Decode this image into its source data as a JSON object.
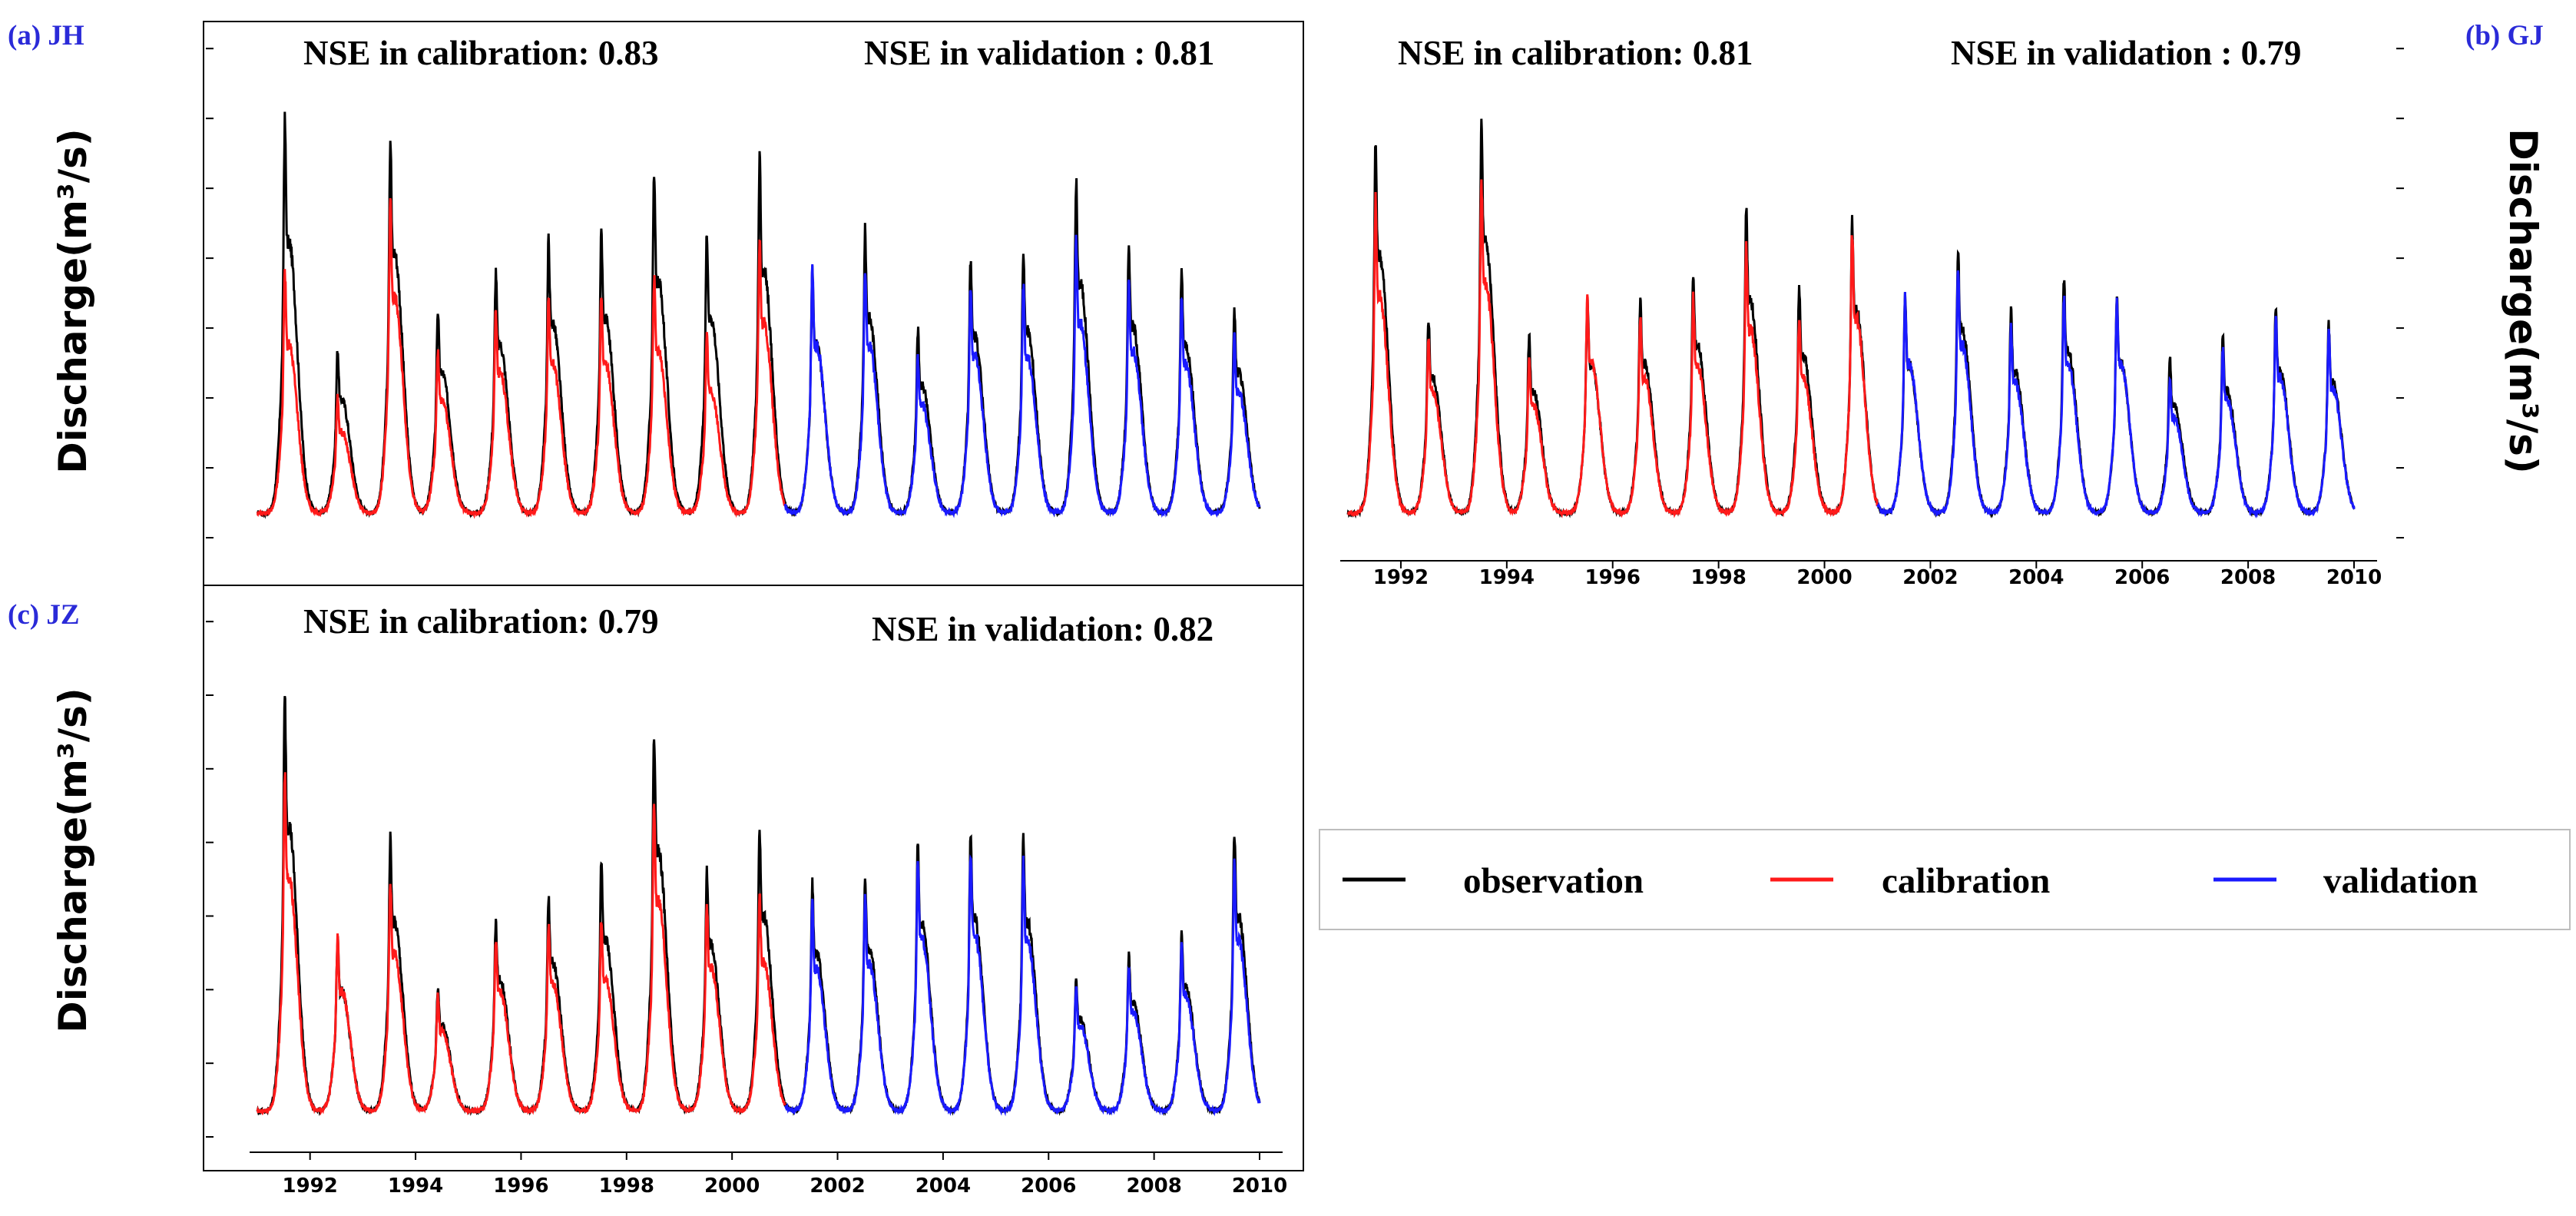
{
  "legend": {
    "items": [
      {
        "label": "observation",
        "color": "#000000"
      },
      {
        "label": "calibration",
        "color": "#ff1a1a"
      },
      {
        "label": "validation",
        "color": "#1a1aff"
      }
    ]
  },
  "chart_data": [
    {
      "type": "line",
      "panel_label": "(a) JH",
      "ylabel": "Discharge(m³/s)",
      "nse_calibration": "NSE in calibration: 0.83",
      "nse_validation": "NSE in validation : 0.81",
      "xlim": [
        1991,
        2010
      ],
      "x_ticks": [],
      "calibration_period": [
        1991,
        2001
      ],
      "validation_period": [
        2001,
        2010
      ],
      "annual_peaks": {
        "years": [
          1991.6,
          1992.6,
          1993.6,
          1994.5,
          1995.6,
          1996.6,
          1997.6,
          1998.6,
          1999.6,
          2000.6,
          2001.6,
          2002.6,
          2003.6,
          2004.6,
          2005.6,
          2006.6,
          2007.6,
          2008.6,
          2009.6
        ],
        "observation": [
          1.0,
          0.42,
          0.96,
          0.52,
          0.62,
          0.7,
          0.72,
          0.86,
          0.72,
          0.9,
          0.62,
          0.72,
          0.47,
          0.65,
          0.67,
          0.85,
          0.69,
          0.62,
          0.52
        ],
        "simulation": [
          0.62,
          0.3,
          0.8,
          0.42,
          0.52,
          0.55,
          0.55,
          0.6,
          0.45,
          0.7,
          0.62,
          0.62,
          0.4,
          0.58,
          0.58,
          0.7,
          0.6,
          0.55,
          0.45
        ]
      },
      "legend": [
        "observation",
        "calibration",
        "validation"
      ]
    },
    {
      "type": "line",
      "panel_label": "(b) GJ",
      "ylabel": "Discharge(m³/s)",
      "nse_calibration": "NSE in calibration: 0.81",
      "nse_validation": "NSE in validation : 0.79",
      "xlim": [
        1991,
        2010
      ],
      "x_ticks": [
        "1992",
        "1994",
        "1996",
        "1998",
        "2000",
        "2002",
        "2004",
        "2006",
        "2008",
        "2010"
      ],
      "calibration_period": [
        1991,
        2001
      ],
      "validation_period": [
        2001,
        2010
      ],
      "annual_peaks": {
        "years": [
          1991.6,
          1992.6,
          1993.6,
          1994.5,
          1995.6,
          1996.6,
          1997.6,
          1998.6,
          1999.6,
          2000.6,
          2001.6,
          2002.6,
          2003.6,
          2004.6,
          2005.6,
          2006.6,
          2007.6,
          2008.6,
          2009.6
        ],
        "observation": [
          0.95,
          0.5,
          1.0,
          0.45,
          0.55,
          0.55,
          0.62,
          0.78,
          0.58,
          0.75,
          0.55,
          0.68,
          0.52,
          0.6,
          0.55,
          0.4,
          0.45,
          0.53,
          0.48
        ],
        "simulation": [
          0.8,
          0.45,
          0.85,
          0.4,
          0.55,
          0.5,
          0.55,
          0.68,
          0.5,
          0.72,
          0.55,
          0.62,
          0.48,
          0.55,
          0.55,
          0.35,
          0.42,
          0.5,
          0.46
        ]
      },
      "legend": [
        "observation",
        "calibration",
        "validation"
      ]
    },
    {
      "type": "line",
      "panel_label": "(c) JZ",
      "ylabel": "Discharge(m³/s)",
      "nse_calibration": "NSE in calibration: 0.79",
      "nse_validation": "NSE in validation: 0.82",
      "xlim": [
        1991,
        2010
      ],
      "x_ticks": [
        "1992",
        "1994",
        "1996",
        "1998",
        "2000",
        "2002",
        "2004",
        "2006",
        "2008",
        "2010"
      ],
      "calibration_period": [
        1991,
        2001
      ],
      "validation_period": [
        2001,
        2010
      ],
      "annual_peaks": {
        "years": [
          1991.6,
          1992.6,
          1993.6,
          1994.5,
          1995.6,
          1996.6,
          1997.6,
          1998.6,
          1999.6,
          2000.6,
          2001.6,
          2002.6,
          2003.6,
          2004.6,
          2005.6,
          2006.6,
          2007.6,
          2008.6,
          2009.6
        ],
        "observation": [
          1.0,
          0.42,
          0.66,
          0.3,
          0.46,
          0.52,
          0.6,
          0.92,
          0.58,
          0.68,
          0.55,
          0.57,
          0.65,
          0.67,
          0.66,
          0.32,
          0.38,
          0.43,
          0.68
        ],
        "simulation": [
          0.82,
          0.42,
          0.55,
          0.28,
          0.42,
          0.45,
          0.46,
          0.74,
          0.5,
          0.52,
          0.5,
          0.52,
          0.6,
          0.62,
          0.6,
          0.3,
          0.35,
          0.4,
          0.6
        ]
      },
      "legend": [
        "observation",
        "calibration",
        "validation"
      ]
    }
  ]
}
